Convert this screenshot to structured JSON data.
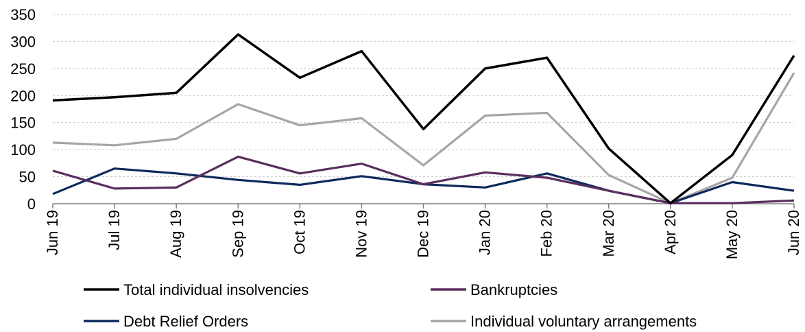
{
  "chart_data": {
    "type": "line",
    "title": "",
    "xlabel": "",
    "ylabel": "",
    "ylim": [
      0,
      350
    ],
    "yticks": [
      0,
      50,
      100,
      150,
      200,
      250,
      300,
      350
    ],
    "grid": "horizontal dashed",
    "legend_position": "bottom",
    "categories": [
      "Jun 19",
      "Jul 19",
      "Aug 19",
      "Sep 19",
      "Oct 19",
      "Nov 19",
      "Dec 19",
      "Jan 20",
      "Feb 20",
      "Mar 20",
      "Apr 20",
      "May 20",
      "Jun 20"
    ],
    "series": [
      {
        "name": "Total individual insolvencies",
        "color": "#000000",
        "values": [
          191,
          197,
          205,
          313,
          233,
          282,
          138,
          250,
          270,
          102,
          1,
          90,
          274
        ]
      },
      {
        "name": "Bankruptcies",
        "color": "#5a2d5e",
        "values": [
          61,
          28,
          30,
          87,
          56,
          74,
          36,
          58,
          48,
          24,
          1,
          1,
          6
        ]
      },
      {
        "name": "Debt Relief Orders",
        "color": "#0d2a5c",
        "values": [
          18,
          65,
          56,
          44,
          35,
          51,
          36,
          30,
          56,
          24,
          1,
          40,
          24
        ]
      },
      {
        "name": "Individual voluntary arrangements",
        "color": "#a6a6a6",
        "values": [
          113,
          108,
          120,
          184,
          145,
          158,
          71,
          163,
          168,
          53,
          1,
          48,
          242
        ]
      }
    ]
  }
}
